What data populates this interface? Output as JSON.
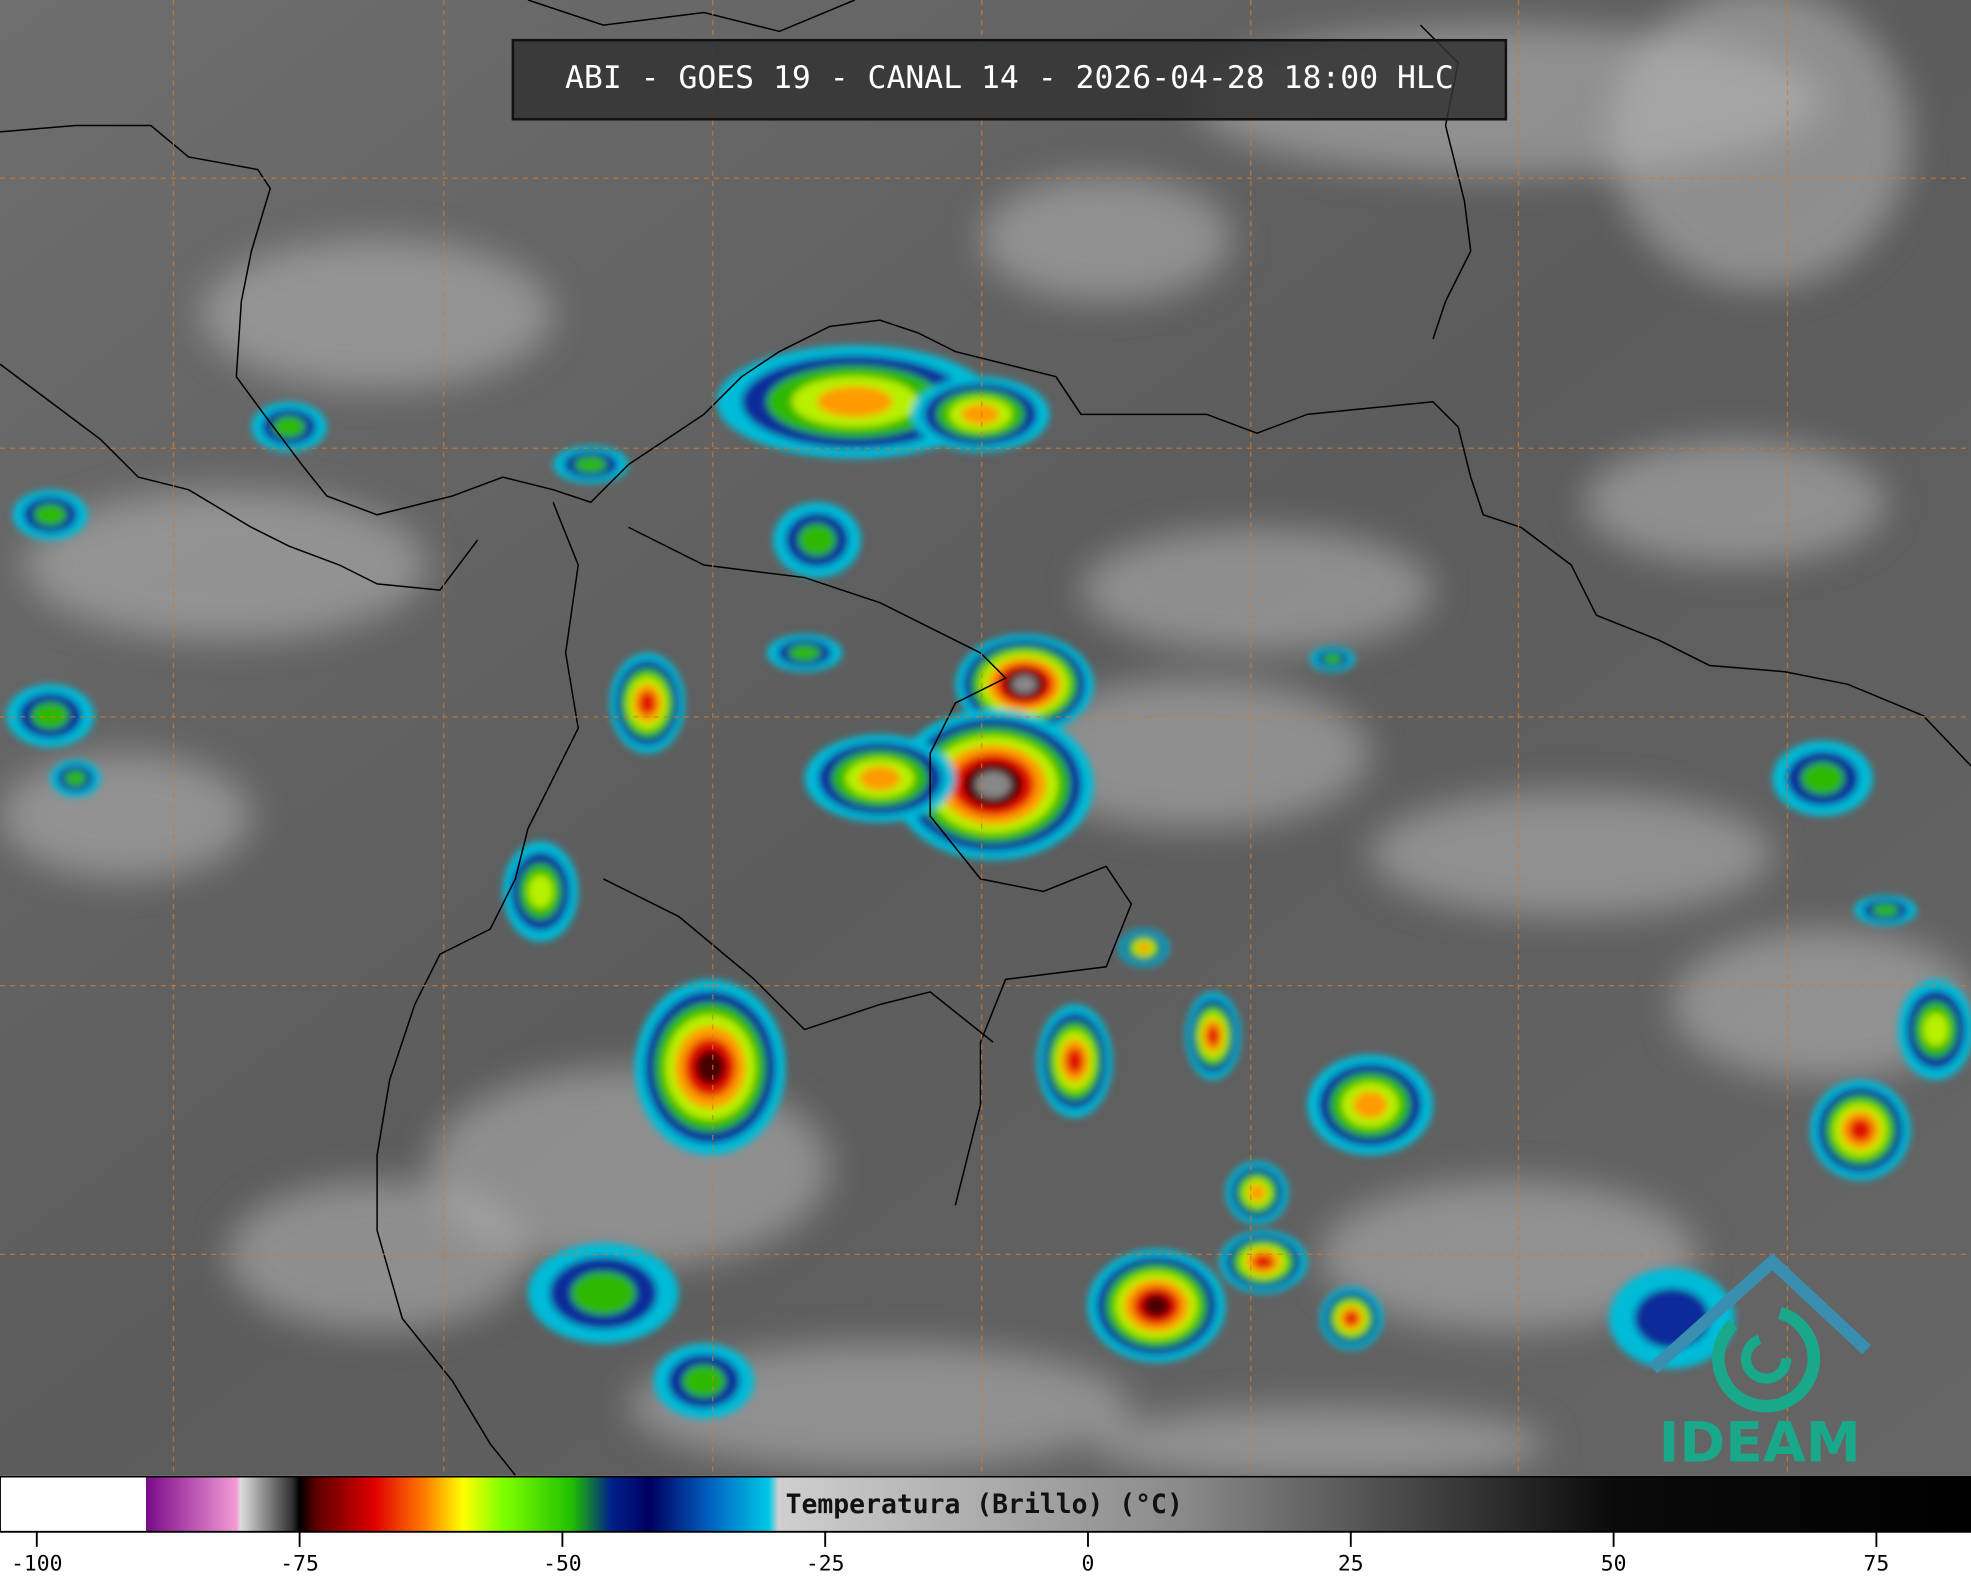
{
  "header": {
    "title": "ABI - GOES 19 - CANAL 14 - 2026-04-28 18:00 HLC"
  },
  "colorbar": {
    "label": "Temperatura (Brillo) (°C)",
    "xlim": [
      -103.5,
      84
    ],
    "xticks": [
      -100,
      -75,
      -50,
      -25,
      0,
      25,
      50,
      75
    ]
  },
  "logo": {
    "text": "IDEAM"
  }
}
